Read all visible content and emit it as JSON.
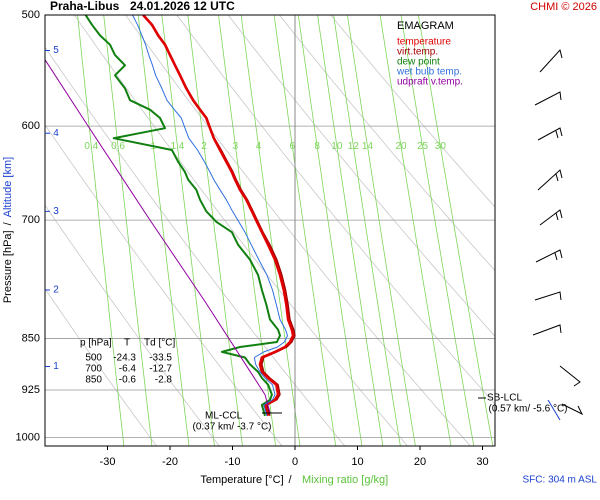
{
  "chart_data": {
    "type": "emagram",
    "title": "Praha-Libus",
    "subtitle": "24.01.2026 12 UTC",
    "credit": "CHMI © 2026",
    "legend_title": "EMAGRAM",
    "xlabel": "Temperature [°C]",
    "xlabel_separator": "/",
    "x2label": "Mixing ratio [g/kg]",
    "ylabel": "Pressure [hPa]",
    "ylabel_separator": "/",
    "y2label": "Altitude [km]",
    "surface_note": "SFC: 304 m ASL",
    "xlim": [
      -40,
      32
    ],
    "xticks": [
      -30,
      -20,
      -10,
      0,
      10,
      20,
      30
    ],
    "ylim": [
      1014,
      500
    ],
    "log_y": true,
    "yticks": [
      500,
      600,
      700,
      850,
      925,
      1000
    ],
    "altitude_ticks": [
      {
        "value": 890,
        "label": "1"
      },
      {
        "value": 785,
        "label": "2"
      },
      {
        "value": 690,
        "label": "3"
      },
      {
        "value": 607,
        "label": "4"
      },
      {
        "value": 530,
        "label": "5"
      }
    ],
    "mixing_ratio_lines": [
      0.4,
      0.6,
      1,
      1.4,
      2,
      3,
      4,
      6,
      8,
      10,
      12,
      14,
      20,
      25,
      30
    ],
    "mixing_ratio_color": "#7dd65a",
    "dry_adiabats": [
      250,
      260,
      270,
      280,
      290,
      300,
      310,
      320,
      330,
      340
    ],
    "y": [
      965,
      948,
      940,
      932,
      917,
      907,
      898,
      887,
      877,
      869,
      862,
      855,
      846,
      838,
      824,
      804,
      785,
      766,
      747,
      729,
      714,
      702,
      690,
      677,
      666,
      655,
      647,
      636,
      624,
      612,
      602,
      592,
      584,
      575,
      564,
      552,
      543,
      534,
      525,
      517,
      508,
      500
    ],
    "series": [
      {
        "name": "temperature",
        "color": "#e00000",
        "values": [
          -4.3,
          -4.8,
          -3.2,
          -2.7,
          -3.0,
          -4.3,
          -5.3,
          -5.6,
          -5.3,
          -3.2,
          -1.6,
          -0.8,
          -0.3,
          -0.5,
          -1.1,
          -1.4,
          -1.8,
          -2.4,
          -3.2,
          -4.3,
          -5.3,
          -6.1,
          -6.9,
          -7.8,
          -8.8,
          -9.6,
          -10.1,
          -11.0,
          -12.0,
          -13.0,
          -13.6,
          -14.2,
          -15.2,
          -16.3,
          -17.4,
          -18.4,
          -19.2,
          -20.0,
          -20.8,
          -21.9,
          -22.9,
          -24.3
        ]
      },
      {
        "name": "virt.temp.",
        "color": "#a00000",
        "values": [
          -4.0,
          -4.5,
          -2.9,
          -2.4,
          -2.7,
          -4.0,
          -5.0,
          -5.3,
          -5.0,
          -2.9,
          -1.3,
          -0.5,
          0.0,
          -0.2,
          -0.8,
          -1.1,
          -1.5,
          -2.1,
          -2.9,
          -4.0,
          -5.1,
          -5.9,
          -6.7,
          -7.6,
          -8.6,
          -9.4,
          -9.9,
          -10.8,
          -11.8,
          -12.9,
          -13.5,
          -14.1,
          -15.1,
          -16.2,
          -17.3,
          -18.3,
          -19.1,
          -19.9,
          -20.7,
          -21.8,
          -22.8,
          -24.2
        ]
      },
      {
        "name": "dew point",
        "color": "#108010",
        "values": [
          -4.8,
          -5.3,
          -4.0,
          -3.7,
          -4.3,
          -5.3,
          -5.9,
          -7.2,
          -8.0,
          -11.7,
          -8.8,
          -2.9,
          -2.4,
          -2.7,
          -4.0,
          -4.6,
          -5.3,
          -5.9,
          -7.2,
          -9.1,
          -10.1,
          -12.6,
          -14.2,
          -15.2,
          -15.8,
          -17.1,
          -17.6,
          -18.7,
          -19.7,
          -29.0,
          -20.8,
          -21.6,
          -23.2,
          -26.4,
          -27.2,
          -28.8,
          -27.2,
          -28.8,
          -29.6,
          -31.2,
          -32.5,
          -33.5
        ]
      },
      {
        "name": "wet bulb temp.",
        "color": "#3070e0",
        "values": [
          -4.5,
          -5.0,
          -3.6,
          -3.2,
          -3.6,
          -4.8,
          -5.6,
          -6.3,
          -6.5,
          -5.0,
          -2.8,
          -1.7,
          -1.2,
          -1.5,
          -2.4,
          -3.0,
          -3.6,
          -4.5,
          -5.8,
          -7.0,
          -8.0,
          -9.0,
          -10.0,
          -11.0,
          -12.0,
          -13.0,
          -13.6,
          -14.5,
          -15.6,
          -17.0,
          -17.6,
          -18.2,
          -19.3,
          -20.5,
          -21.3,
          -22.3,
          -22.8,
          -23.4,
          -23.9,
          -24.5,
          -25.2,
          -26.0
        ]
      },
      {
        "name": "udpraft v.temp.",
        "color": "#9000a0",
        "y": [
          538,
          600,
          700,
          800,
          900,
          932,
          960
        ],
        "values": [
          -40,
          -33.1,
          -23.2,
          -14.4,
          -7.0,
          -4.8,
          -4.0
        ]
      }
    ],
    "table": {
      "header": [
        "p [hPa]",
        "T",
        "Td [°C]"
      ],
      "rows": [
        [
          500,
          -24.3,
          -33.5
        ],
        [
          700,
          -6.4,
          -12.7
        ],
        [
          850,
          -0.6,
          -2.8
        ]
      ]
    },
    "annotations": {
      "ml_ccl": "ML-CCL",
      "ml_ccl_detail": "(0.37 km/ -3.7 °C)",
      "sb_lcl": "SB-LCL",
      "sb_lcl_detail": "(0.57 km/ -5.6 °C)"
    }
  }
}
